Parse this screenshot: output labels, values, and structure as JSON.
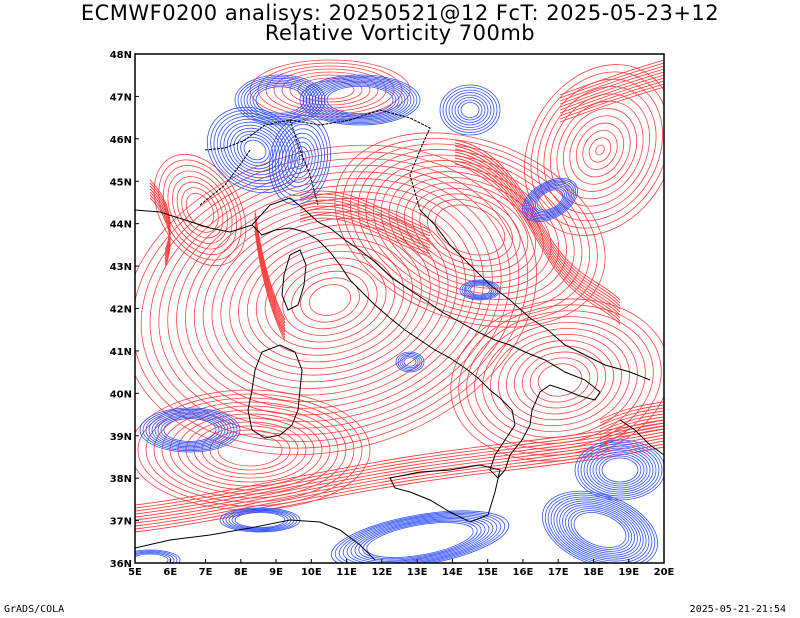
{
  "title_line1": "ECMWF0200 analisys: 20250521@12 FcT: 2025-05-23+12",
  "title_line2": "Relative Vorticity 700mb",
  "map": {
    "lon_range": [
      5,
      20
    ],
    "lat_range": [
      36,
      48
    ],
    "lon_labels": [
      "5E",
      "6E",
      "7E",
      "8E",
      "9E",
      "10E",
      "11E",
      "12E",
      "13E",
      "14E",
      "15E",
      "16E",
      "17E",
      "18E",
      "19E",
      "20E"
    ],
    "lat_labels": [
      "36N",
      "37N",
      "38N",
      "39N",
      "40N",
      "41N",
      "42N",
      "43N",
      "44N",
      "45N",
      "46N",
      "47N",
      "48N"
    ],
    "positive_color": "#ff4040",
    "negative_color": "#3050ff",
    "coast_color": "#000000"
  },
  "footer_left": "GrADS/COLA",
  "footer_right": "2025-05-21-21:54"
}
